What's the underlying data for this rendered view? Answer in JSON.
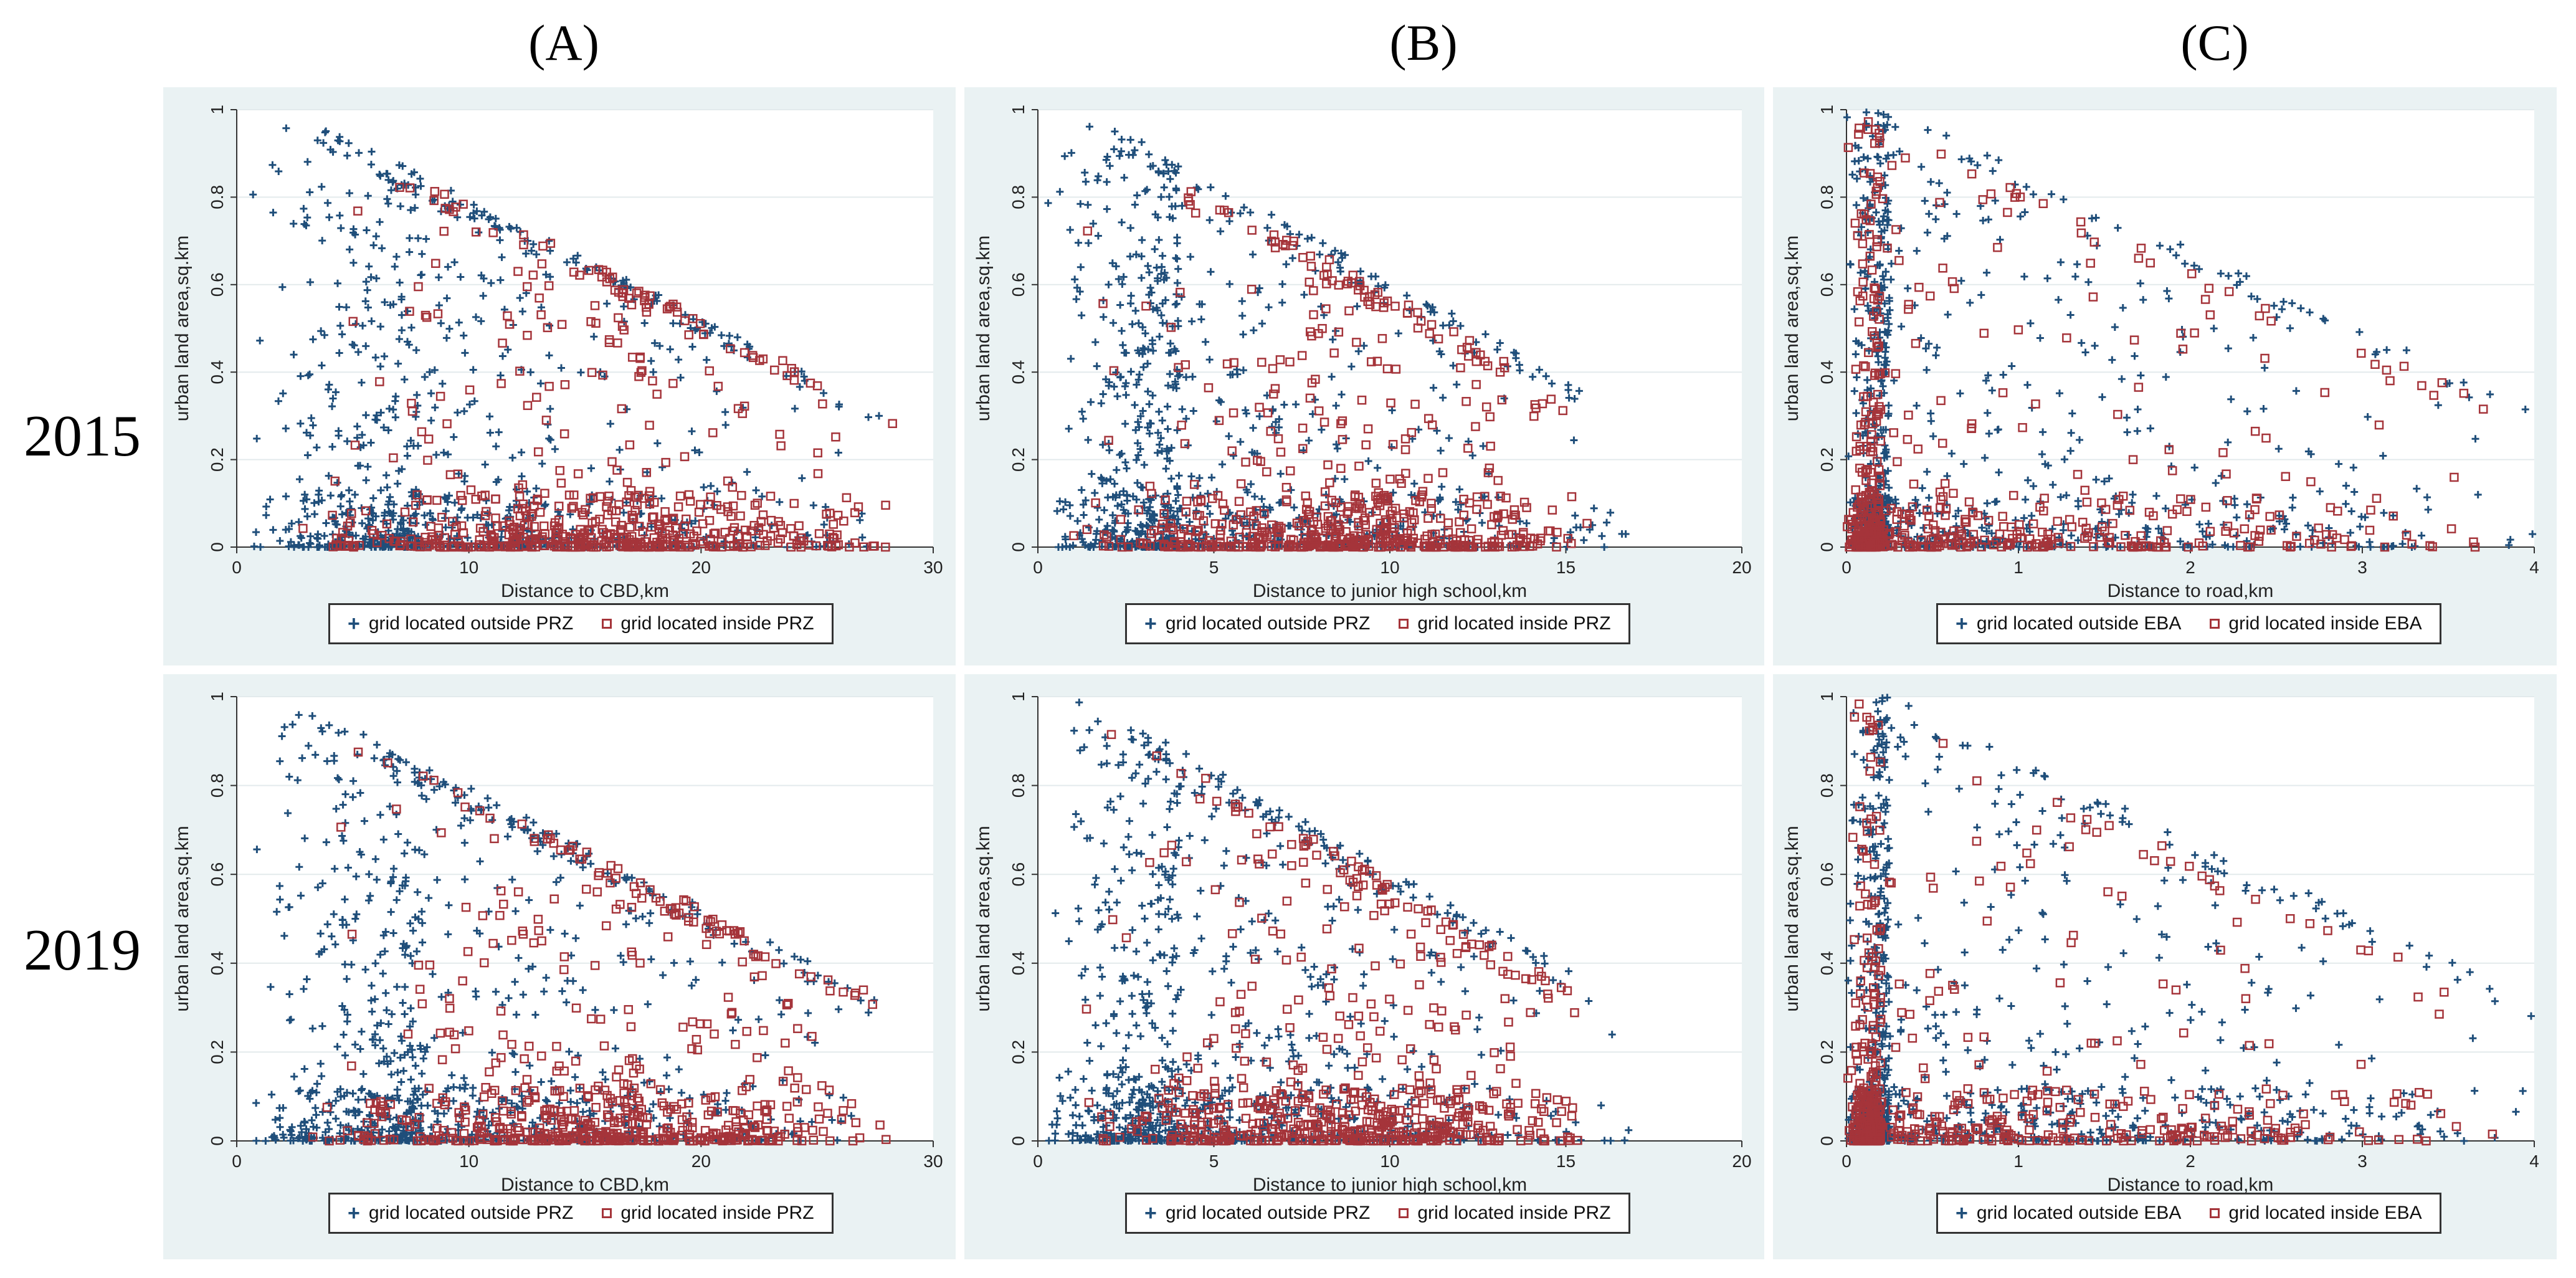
{
  "column_labels": [
    "(A)",
    "(B)",
    "(C)"
  ],
  "row_labels": [
    "2015",
    "2019"
  ],
  "colors": {
    "outside": "#1f4e7a",
    "inside": "#a5343a",
    "panel_bg": "#eaf2f3",
    "grid": "#e3eaec"
  },
  "chart_data": [
    {
      "id": "A2015",
      "type": "scatter",
      "ylabel": "urban land area,sq.km",
      "xlabel": "Distance to CBD,km",
      "xlim": [
        0,
        30
      ],
      "xticks": [
        0,
        10,
        20,
        30
      ],
      "ylim": [
        0,
        1
      ],
      "yticks": [
        0,
        0.2,
        0.4,
        0.6,
        0.8,
        1
      ],
      "series": [
        {
          "name": "grid located outside PRZ",
          "marker": "plus",
          "n": 900,
          "x_range": [
            0.5,
            28.5
          ],
          "x_mode": 8,
          "cluster_x": 16,
          "decay": "moderate",
          "seed": 11
        },
        {
          "name": "grid located inside PRZ",
          "marker": "square",
          "n": 620,
          "x_range": [
            2,
            28.5
          ],
          "x_mode": 16,
          "cluster_x": 16,
          "decay": "low",
          "seed": 12
        }
      ],
      "legend": [
        "grid located outside PRZ",
        "grid located inside PRZ"
      ]
    },
    {
      "id": "B2015",
      "type": "scatter",
      "ylabel": "urban land area,sq.km",
      "xlabel": "Distance to junior high school,km",
      "xlim": [
        0,
        20
      ],
      "xticks": [
        0,
        5,
        10,
        15,
        20
      ],
      "ylim": [
        0,
        1
      ],
      "yticks": [
        0,
        0.2,
        0.4,
        0.6,
        0.8,
        1
      ],
      "series": [
        {
          "name": "grid located outside PRZ",
          "marker": "plus",
          "n": 900,
          "x_range": [
            0.2,
            17
          ],
          "x_mode": 4,
          "cluster_x": 9,
          "decay": "moderate",
          "seed": 21
        },
        {
          "name": "grid located inside PRZ",
          "marker": "square",
          "n": 620,
          "x_range": [
            1,
            16
          ],
          "x_mode": 9,
          "cluster_x": 9,
          "decay": "low",
          "seed": 22
        }
      ],
      "legend": [
        "grid located outside PRZ",
        "grid located inside PRZ"
      ]
    },
    {
      "id": "C2015",
      "type": "scatter",
      "ylabel": "urban land area,sq.km",
      "xlabel": "Distance to road,km",
      "xlim": [
        0,
        4
      ],
      "xticks": [
        0,
        1,
        2,
        3,
        4
      ],
      "ylim": [
        0,
        1
      ],
      "yticks": [
        0,
        0.2,
        0.4,
        0.6,
        0.8,
        1
      ],
      "series": [
        {
          "name": "grid located outside EBA",
          "marker": "plus",
          "n": 900,
          "x_range": [
            0,
            4.1
          ],
          "x_mode": 0.25,
          "cluster_x": 0.3,
          "decay": "moderate",
          "seed": 31
        },
        {
          "name": "grid located inside EBA",
          "marker": "square",
          "n": 620,
          "x_range": [
            0,
            3.9
          ],
          "x_mode": 0.2,
          "cluster_x": 0.3,
          "decay": "low",
          "seed": 32
        }
      ],
      "legend": [
        "grid located outside EBA",
        "grid located inside EBA"
      ]
    },
    {
      "id": "A2019",
      "type": "scatter",
      "ylabel": "urban land area,sq.km",
      "xlabel": "Distance to CBD,km",
      "xlim": [
        0,
        30
      ],
      "xticks": [
        0,
        10,
        20,
        30
      ],
      "ylim": [
        0,
        1
      ],
      "yticks": [
        0,
        0.2,
        0.4,
        0.6,
        0.8,
        1
      ],
      "series": [
        {
          "name": "grid located outside PRZ",
          "marker": "plus",
          "n": 900,
          "x_range": [
            0.5,
            28.5
          ],
          "x_mode": 8,
          "cluster_x": 16,
          "decay": "moderate",
          "seed": 41
        },
        {
          "name": "grid located inside PRZ",
          "marker": "square",
          "n": 620,
          "x_range": [
            2,
            28.5
          ],
          "x_mode": 16,
          "cluster_x": 16,
          "decay": "low",
          "seed": 42
        }
      ],
      "legend": [
        "grid located outside PRZ",
        "grid located inside PRZ"
      ]
    },
    {
      "id": "B2019",
      "type": "scatter",
      "ylabel": "urban land area,sq.km",
      "xlabel": "Distance to junior high school,km",
      "xlim": [
        0,
        20
      ],
      "xticks": [
        0,
        5,
        10,
        15,
        20
      ],
      "ylim": [
        0,
        1
      ],
      "yticks": [
        0,
        0.2,
        0.4,
        0.6,
        0.8,
        1
      ],
      "series": [
        {
          "name": "grid located outside PRZ",
          "marker": "plus",
          "n": 900,
          "x_range": [
            0.2,
            17
          ],
          "x_mode": 4,
          "cluster_x": 9,
          "decay": "moderate",
          "seed": 51
        },
        {
          "name": "grid located inside PRZ",
          "marker": "square",
          "n": 620,
          "x_range": [
            1,
            16
          ],
          "x_mode": 9,
          "cluster_x": 9,
          "decay": "low",
          "seed": 52
        }
      ],
      "legend": [
        "grid located outside PRZ",
        "grid located inside PRZ"
      ]
    },
    {
      "id": "C2019",
      "type": "scatter",
      "ylabel": "urban land area,sq.km",
      "xlabel": "Distance to road,km",
      "xlim": [
        0,
        4
      ],
      "xticks": [
        0,
        1,
        2,
        3,
        4
      ],
      "ylim": [
        0,
        1
      ],
      "yticks": [
        0,
        0.2,
        0.4,
        0.6,
        0.8,
        1
      ],
      "series": [
        {
          "name": "grid located outside EBA",
          "marker": "plus",
          "n": 900,
          "x_range": [
            0,
            4.1
          ],
          "x_mode": 0.25,
          "cluster_x": 0.3,
          "decay": "moderate",
          "seed": 61
        },
        {
          "name": "grid located inside EBA",
          "marker": "square",
          "n": 620,
          "x_range": [
            0,
            3.9
          ],
          "x_mode": 0.2,
          "cluster_x": 0.3,
          "decay": "low",
          "seed": 62
        }
      ],
      "legend": [
        "grid located outside EBA",
        "grid located inside EBA"
      ]
    }
  ]
}
